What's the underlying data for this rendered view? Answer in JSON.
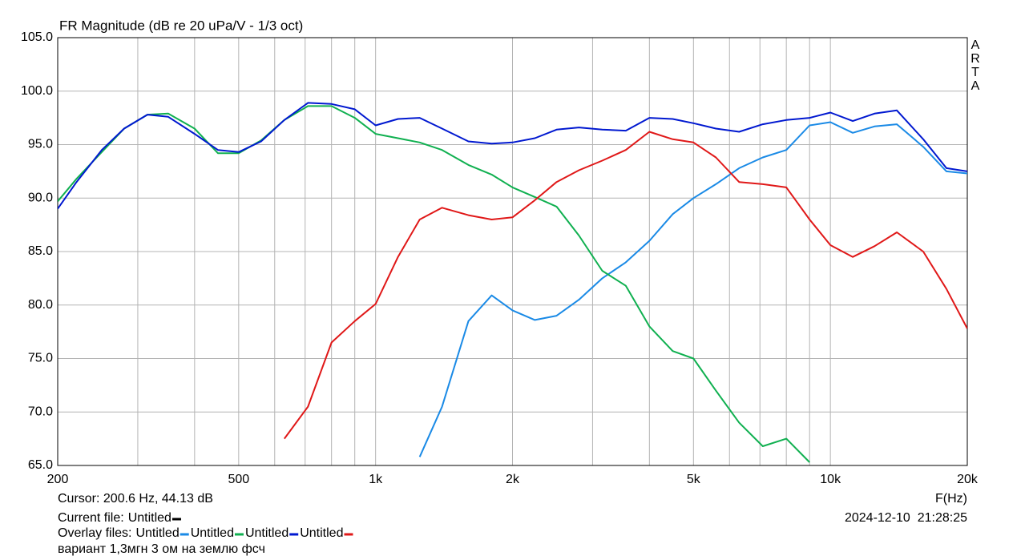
{
  "chart_data": {
    "type": "line",
    "title": "FR Magnitude (dB re 20 uPa/V - 1/3 oct)",
    "watermark": "ARTA",
    "x_label": "F(Hz)",
    "log_x": true,
    "grid": true,
    "xlim": [
      200,
      20000
    ],
    "ylim": [
      65,
      105
    ],
    "xticks": [
      200,
      500,
      {
        "value": 1000,
        "label": "1k"
      },
      {
        "value": 2000,
        "label": "2k"
      },
      {
        "value": 5000,
        "label": "5k"
      },
      {
        "value": 10000,
        "label": "10k"
      },
      {
        "value": 20000,
        "label": "20k"
      }
    ],
    "xminor": [
      300,
      400,
      600,
      700,
      800,
      900,
      3000,
      4000,
      6000,
      7000,
      8000,
      9000
    ],
    "yticks": [
      {
        "value": 105,
        "label": "105.0"
      },
      {
        "value": 100,
        "label": "100.0"
      },
      {
        "value": 95,
        "label": "95.0"
      },
      {
        "value": 90,
        "label": "90.0"
      },
      {
        "value": 85,
        "label": "85.0"
      },
      {
        "value": 80,
        "label": "80.0"
      },
      {
        "value": 75,
        "label": "75.0"
      },
      {
        "value": 70,
        "label": "70.0"
      },
      {
        "value": 65,
        "label": "65.0"
      }
    ],
    "x": [
      200,
      220,
      250,
      280,
      315,
      350,
      400,
      450,
      500,
      560,
      630,
      710,
      800,
      900,
      1000,
      1120,
      1250,
      1400,
      1600,
      1800,
      2000,
      2240,
      2500,
      2800,
      3150,
      3550,
      4000,
      4500,
      5000,
      5600,
      6300,
      7100,
      8000,
      9000,
      10000,
      11200,
      12500,
      14000,
      16000,
      18000,
      20000
    ],
    "series": [
      {
        "name": "Untitled",
        "color": "#1a8ae6",
        "values": [
          null,
          null,
          null,
          null,
          null,
          null,
          null,
          null,
          null,
          null,
          null,
          null,
          null,
          null,
          null,
          null,
          65.8,
          70.5,
          78.5,
          80.9,
          79.5,
          78.6,
          79.0,
          80.5,
          82.5,
          84.0,
          86.0,
          88.5,
          90.0,
          91.3,
          92.8,
          93.8,
          94.5,
          96.8,
          97.1,
          96.1,
          96.7,
          96.9,
          94.8,
          92.5,
          92.3
        ]
      },
      {
        "name": "Untitled",
        "color": "#10b050",
        "values": [
          89.7,
          91.8,
          94.3,
          96.5,
          97.8,
          97.9,
          96.5,
          94.2,
          94.2,
          95.4,
          97.3,
          98.6,
          98.6,
          97.5,
          96.0,
          95.6,
          95.2,
          94.5,
          93.1,
          92.2,
          91.0,
          90.1,
          89.2,
          86.5,
          83.2,
          81.8,
          78.0,
          75.7,
          75.0,
          72.0,
          69.0,
          66.8,
          67.5,
          65.3,
          null,
          null,
          null,
          null,
          null,
          null,
          null
        ]
      },
      {
        "name": "Untitled",
        "color": "#0018d0",
        "values": [
          89.0,
          91.5,
          94.5,
          96.5,
          97.8,
          97.6,
          96.0,
          94.5,
          94.3,
          95.3,
          97.3,
          98.9,
          98.8,
          98.3,
          96.8,
          97.4,
          97.5,
          96.5,
          95.3,
          95.1,
          95.2,
          95.6,
          96.4,
          96.6,
          96.4,
          96.3,
          97.5,
          97.4,
          97.0,
          96.5,
          96.2,
          96.9,
          97.3,
          97.5,
          98.0,
          97.2,
          97.9,
          98.2,
          95.5,
          92.8,
          92.5
        ]
      },
      {
        "name": "Untitled",
        "color": "#e01818",
        "values": [
          null,
          null,
          null,
          null,
          null,
          null,
          null,
          null,
          null,
          null,
          67.5,
          70.5,
          76.5,
          78.5,
          80.1,
          84.5,
          88.0,
          89.1,
          88.4,
          88.0,
          88.2,
          89.8,
          91.5,
          92.6,
          93.5,
          94.5,
          96.2,
          95.5,
          95.2,
          93.8,
          91.5,
          91.3,
          91.0,
          88.0,
          85.6,
          84.5,
          85.5,
          86.8,
          85.0,
          81.5,
          77.8
        ]
      }
    ],
    "cursor": "Cursor: 200.6 Hz, 44.13 dB",
    "current_file": {
      "label": "Current file:",
      "name": "Untitled",
      "color": "#000000"
    },
    "overlay_label": "Overlay files:",
    "timestamp": "2024-12-10  21:28:25",
    "note": "вариант 1,3мгн 3 ом на землю фсч"
  }
}
